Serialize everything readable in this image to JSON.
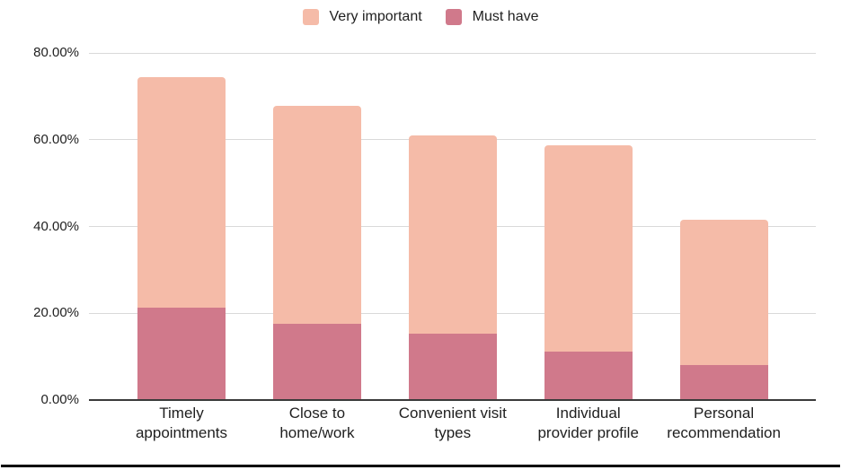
{
  "chart_data": {
    "type": "bar",
    "stacked": true,
    "title": "",
    "categories": [
      "Timely\nappointments",
      "Close to\nhome/work",
      "Convenient visit\ntypes",
      "Individual\nprovider profile",
      "Personal\nrecommendation"
    ],
    "series": [
      {
        "name": "Must have",
        "color": "#d0798b",
        "values": [
          21.3,
          17.5,
          15.2,
          11.2,
          8.1
        ]
      },
      {
        "name": "Very important",
        "color": "#f5bba8",
        "values": [
          53.1,
          50.3,
          45.7,
          47.6,
          33.4
        ]
      }
    ],
    "stack_totals": [
      74.4,
      67.8,
      60.9,
      58.8,
      41.5
    ],
    "legend": [
      {
        "label": "Very important",
        "color": "#f5bba8"
      },
      {
        "label": "Must have",
        "color": "#d0798b"
      }
    ],
    "legend_position": "top-center",
    "y_axis": {
      "range": [
        0,
        80
      ],
      "gridlines": true,
      "ticks": [
        {
          "value": 0,
          "label": "0.00%"
        },
        {
          "value": 20,
          "label": "20.00%"
        },
        {
          "value": 40,
          "label": "40.00%"
        },
        {
          "value": 60,
          "label": "60.00%"
        },
        {
          "value": 80,
          "label": "80.00%"
        }
      ]
    },
    "x_axis": {
      "label": ""
    }
  },
  "colors": {
    "gridline": "#d9d9d9",
    "axis_line": "#3a3a3a",
    "text": "#1f1f1f",
    "background": "#ffffff",
    "page_rule": "#000000"
  }
}
